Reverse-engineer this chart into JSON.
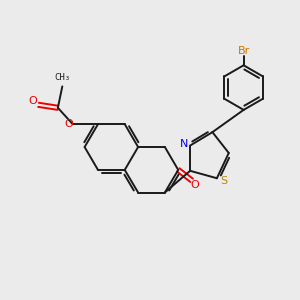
{
  "background_color": "#ebebeb",
  "bond_color": "#1a1a1a",
  "nitrogen_color": "#0000ee",
  "sulfur_color": "#b8860b",
  "oxygen_color": "#ee0000",
  "bromine_color": "#cc7700",
  "figsize": [
    3.0,
    3.0
  ],
  "dpi": 100,
  "lw": 1.4,
  "xlim": [
    0,
    10
  ],
  "ylim": [
    0,
    10
  ]
}
